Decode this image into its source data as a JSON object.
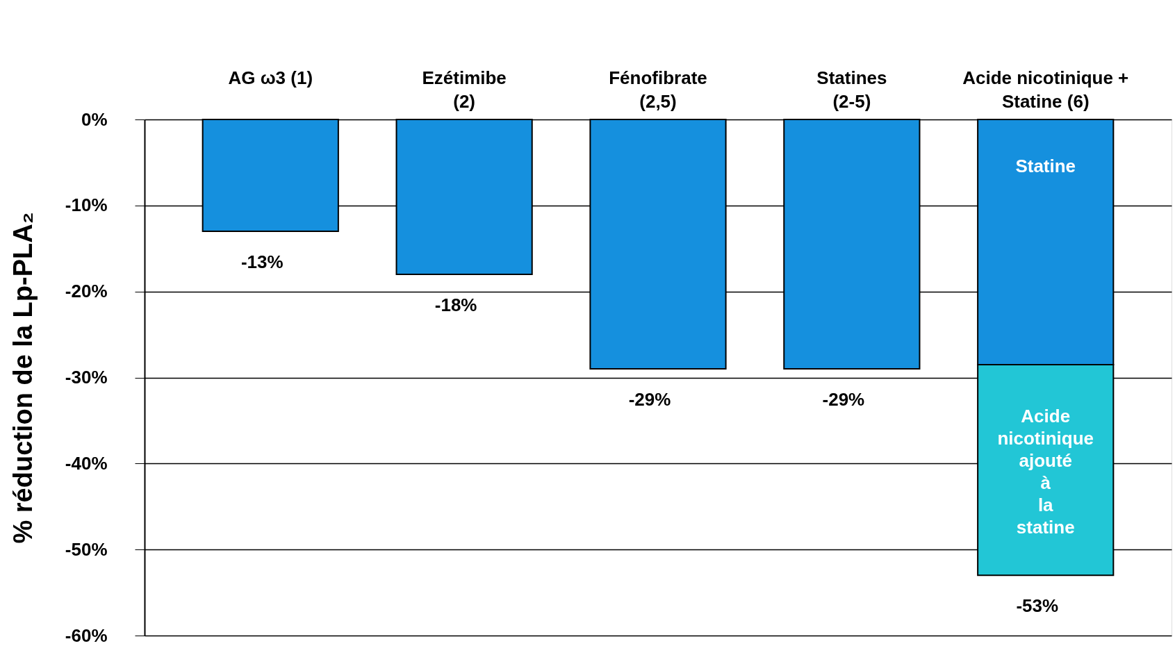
{
  "chart_data": {
    "type": "bar",
    "stacked": true,
    "ylabel": "% réduction de la Lp-PLA₂",
    "categories": [
      "AG ω3 (1)",
      "Ezétimibe\n(2)",
      "Fénofibrate\n(2,5)",
      "Statines\n(2-5)",
      "Acide nicotinique +\nStatine (6)"
    ],
    "series": [
      {
        "color": "#1590de",
        "values": [
          -13,
          -18,
          -29,
          -29,
          -28.5
        ]
      },
      {
        "color": "#22c6d6",
        "values": [
          null,
          null,
          null,
          null,
          -24.5
        ]
      }
    ],
    "totals": [
      "-13%",
      "-18%",
      "-29%",
      "-29%",
      "-53%"
    ],
    "annotations": [
      "Statine",
      "Acide nicotinique ajouté à la statine"
    ],
    "ylim": [
      -60,
      0
    ],
    "yticks": [
      {
        "value": 0,
        "label": "0%"
      },
      {
        "value": -10,
        "label": "-10%"
      },
      {
        "value": -20,
        "label": "-20%"
      },
      {
        "value": -30,
        "label": "-30%"
      },
      {
        "value": -40,
        "label": "-40%"
      },
      {
        "value": -50,
        "label": "-50%"
      },
      {
        "value": -60,
        "label": "-60%"
      }
    ],
    "grid": "y",
    "legend": false
  }
}
